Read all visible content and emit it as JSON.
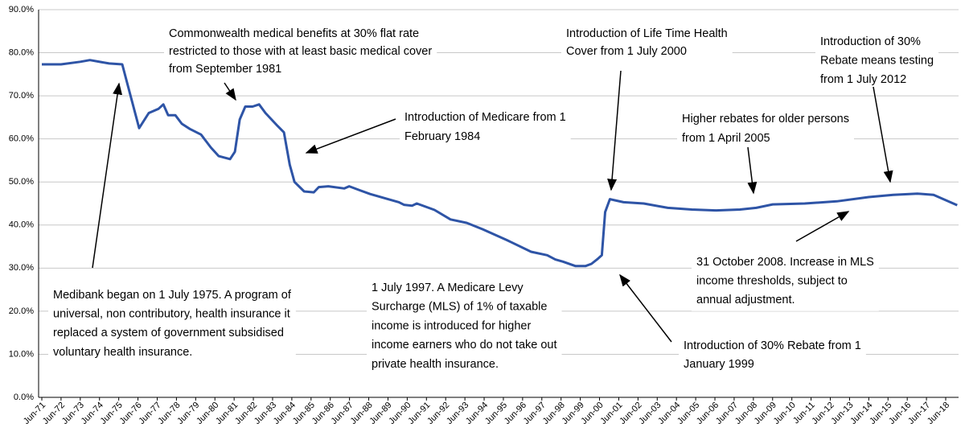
{
  "chart_data": {
    "type": "line",
    "color": "#2e54a6",
    "x": [
      1971.5,
      1972.5,
      1973.5,
      1974.0,
      1975.0,
      1975.68,
      1976.56,
      1977.06,
      1977.57,
      1977.82,
      1978.07,
      1978.44,
      1978.78,
      1979.2,
      1979.78,
      1980.29,
      1980.7,
      1981.29,
      1981.54,
      1981.79,
      1982.08,
      1982.46,
      1982.8,
      1983.13,
      1983.76,
      1984.09,
      1984.39,
      1984.64,
      1985.14,
      1985.64,
      1985.9,
      1986.4,
      1987.23,
      1987.48,
      1988.07,
      1988.57,
      1989.5,
      1990.07,
      1990.33,
      1990.75,
      1991.0,
      1991.92,
      1992.75,
      1993.6,
      1994.43,
      1995.68,
      1996.94,
      1997.78,
      1998.2,
      1998.6,
      1999.24,
      1999.78,
      2000.08,
      2000.37,
      2000.62,
      2000.79,
      2001.04,
      2001.75,
      2002.8,
      2004.05,
      2005.3,
      2006.56,
      2007.8,
      2008.65,
      2009.5,
      2011.17,
      2012.84,
      2014.5,
      2015.77,
      2017.03,
      2017.87,
      2019.1
    ],
    "values": [
      77.3,
      77.3,
      77.9,
      78.3,
      77.5,
      77.3,
      62.5,
      66,
      67,
      68,
      65.5,
      65.5,
      63.5,
      62.3,
      61,
      58,
      56,
      55.3,
      57,
      64.5,
      67.5,
      67.5,
      68,
      66,
      63,
      61.5,
      54,
      50,
      47.8,
      47.6,
      48.8,
      49,
      48.5,
      49,
      48,
      47.2,
      46,
      45.3,
      44.7,
      44.5,
      45,
      43.5,
      41.3,
      40.5,
      39,
      36.5,
      33.8,
      33,
      32,
      31.5,
      30.5,
      30.5,
      31,
      32,
      33,
      43,
      46,
      45.3,
      45,
      44,
      43.6,
      43.4,
      43.6,
      44,
      44.8,
      45,
      45.5,
      46.5,
      47,
      47.3,
      47,
      44.6
    ],
    "xlim": [
      1971.5,
      2019.2
    ],
    "xticks": [
      {
        "value": 1971.5,
        "label": "Jun-71"
      },
      {
        "value": 1972.5,
        "label": "Jun-72"
      },
      {
        "value": 1973.5,
        "label": "Jun-73"
      },
      {
        "value": 1974.5,
        "label": "Jun-74"
      },
      {
        "value": 1975.5,
        "label": "Jun-75"
      },
      {
        "value": 1976.5,
        "label": "Jun-76"
      },
      {
        "value": 1977.5,
        "label": "Jun-77"
      },
      {
        "value": 1978.5,
        "label": "Jun-78"
      },
      {
        "value": 1979.5,
        "label": "Jun-79"
      },
      {
        "value": 1980.5,
        "label": "Jun-80"
      },
      {
        "value": 1981.5,
        "label": "Jun-81"
      },
      {
        "value": 1982.5,
        "label": "Jun-82"
      },
      {
        "value": 1983.5,
        "label": "Jun-83"
      },
      {
        "value": 1984.5,
        "label": "Jun-84"
      },
      {
        "value": 1985.5,
        "label": "Jun-85"
      },
      {
        "value": 1986.5,
        "label": "Jun-86"
      },
      {
        "value": 1987.5,
        "label": "Jun-87"
      },
      {
        "value": 1988.5,
        "label": "Jun-88"
      },
      {
        "value": 1989.5,
        "label": "Jun-89"
      },
      {
        "value": 1990.5,
        "label": "Jun-90"
      },
      {
        "value": 1991.5,
        "label": "Jun-91"
      },
      {
        "value": 1992.5,
        "label": "Jun-92"
      },
      {
        "value": 1993.5,
        "label": "Jun-93"
      },
      {
        "value": 1994.5,
        "label": "Jun-94"
      },
      {
        "value": 1995.5,
        "label": "Jun-95"
      },
      {
        "value": 1996.5,
        "label": "Jun-96"
      },
      {
        "value": 1997.5,
        "label": "Jun-97"
      },
      {
        "value": 1998.5,
        "label": "Jun-98"
      },
      {
        "value": 1999.5,
        "label": "Jun-99"
      },
      {
        "value": 2000.5,
        "label": "Jun-00"
      },
      {
        "value": 2001.5,
        "label": "Jun-01"
      },
      {
        "value": 2002.5,
        "label": "Jun-02"
      },
      {
        "value": 2003.5,
        "label": "Jun-03"
      },
      {
        "value": 2004.5,
        "label": "Jun-04"
      },
      {
        "value": 2005.5,
        "label": "Jun-05"
      },
      {
        "value": 2006.5,
        "label": "Jun-06"
      },
      {
        "value": 2007.5,
        "label": "Jun-07"
      },
      {
        "value": 2008.5,
        "label": "Jun-08"
      },
      {
        "value": 2009.5,
        "label": "Jun-09"
      },
      {
        "value": 2010.5,
        "label": "Jun-10"
      },
      {
        "value": 2011.5,
        "label": "Jun-11"
      },
      {
        "value": 2012.5,
        "label": "Jun-12"
      },
      {
        "value": 2013.5,
        "label": "Jun-13"
      },
      {
        "value": 2014.5,
        "label": "Jun-14"
      },
      {
        "value": 2015.5,
        "label": "Jun-15"
      },
      {
        "value": 2016.5,
        "label": "Jun-16"
      },
      {
        "value": 2017.5,
        "label": "Jun-17"
      },
      {
        "value": 2018.5,
        "label": "Jun-18"
      }
    ],
    "ylim": [
      0,
      90
    ],
    "yticks": [
      {
        "value": 0,
        "label": "0.0%"
      },
      {
        "value": 10,
        "label": "10.0%"
      },
      {
        "value": 20,
        "label": "20.0%"
      },
      {
        "value": 30,
        "label": "30.0%"
      },
      {
        "value": 40,
        "label": "40.0%"
      },
      {
        "value": 50,
        "label": "50.0%"
      },
      {
        "value": 60,
        "label": "60.0%"
      },
      {
        "value": 70,
        "label": "70.0%"
      },
      {
        "value": 80,
        "label": "80.0%"
      },
      {
        "value": 90,
        "label": "90.0%"
      }
    ],
    "grid": true,
    "annotations": [
      [
        "Commonwealth medical benefits at 30% flat rate",
        "restricted to those with at least basic medical cover",
        "from September 1981"
      ],
      [
        "Introduction of Medicare from 1",
        "February 1984"
      ],
      [
        "Introduction of Life Time Health",
        "Cover from 1 July 2000"
      ],
      [
        "Introduction of 30%",
        "Rebate means testing",
        "from 1 July 2012"
      ],
      [
        "Higher rebates for older persons",
        "from 1 April 2005"
      ],
      [
        "31 October 2008. Increase in MLS",
        "income thresholds, subject to",
        "annual adjustment."
      ],
      [
        "Medibank began on 1 July 1975.  A program of",
        "universal, non contributory, health insurance it",
        "replaced a system of government subsidised",
        "voluntary health insurance."
      ],
      [
        "1 July 1997. A Medicare Levy",
        "Surcharge (MLS) of 1% of taxable",
        "income is introduced for higher",
        "income earners who do not take out",
        "private health insurance."
      ],
      [
        "Introduction of 30% Rebate from 1",
        "January 1999"
      ]
    ]
  }
}
